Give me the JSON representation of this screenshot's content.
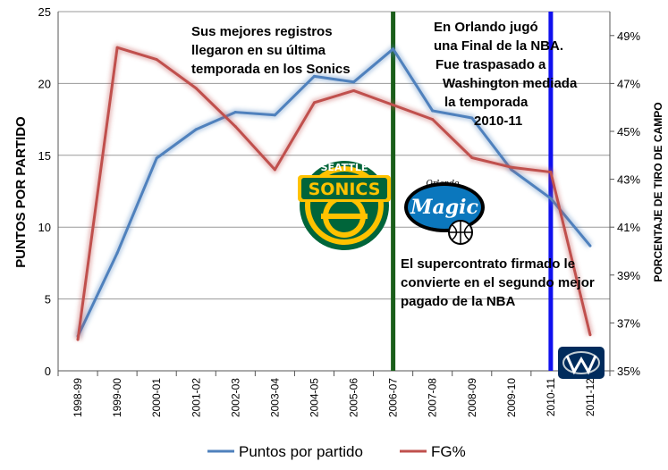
{
  "chart_data": {
    "type": "line",
    "categories": [
      "1998-99",
      "1999-00",
      "2000-01",
      "2001-02",
      "2002-03",
      "2003-04",
      "2004-05",
      "2005-06",
      "2006-07",
      "2007-08",
      "2008-09",
      "2009-10",
      "2010-11",
      "2011-12"
    ],
    "series": [
      {
        "name": "Puntos por partido",
        "axis": "left",
        "color": "#4f81bd",
        "values": [
          2.4,
          8.2,
          14.8,
          16.8,
          18.0,
          17.8,
          20.5,
          20.1,
          22.4,
          18.1,
          17.6,
          14.0,
          12.0,
          8.7
        ]
      },
      {
        "name": "FG%",
        "axis": "right",
        "color": "#c0504d",
        "values": [
          36.3,
          48.5,
          48.0,
          46.8,
          45.2,
          43.4,
          46.2,
          46.7,
          46.1,
          45.5,
          43.9,
          43.5,
          43.3,
          36.5
        ]
      }
    ],
    "ylabel": "PUNTOS POR PARTIDO",
    "y2label": "PORCENTAJE DE TIRO DE CAMPO",
    "ylim": [
      0,
      25
    ],
    "yticks": [
      "0",
      "5",
      "10",
      "15",
      "20",
      "25"
    ],
    "y2lim": [
      35,
      50
    ],
    "y2ticks": [
      "35%",
      "37%",
      "39%",
      "41%",
      "43%",
      "45%",
      "47%",
      "49%"
    ],
    "grid": "horizontal",
    "legend_position": "bottom",
    "vlines": [
      {
        "category": "2006-07",
        "color": "#1a5e1a"
      },
      {
        "category": "2010-11",
        "color": "#1010ee"
      }
    ],
    "annotations": [
      {
        "lines": [
          "Sus mejores registros",
          "llegaron en su última",
          "temporada en los Sonics"
        ]
      },
      {
        "lines": [
          "En Orlando jugó",
          "una Final de la NBA.",
          "Fue traspasado a",
          "Washington mediada",
          "la temporada",
          "2010-11"
        ]
      },
      {
        "lines": [
          "El supercontrato firmado le",
          "convierte en el segundo mejor",
          "pagado de la NBA"
        ]
      }
    ],
    "logos": [
      {
        "team": "Seattle SuperSonics",
        "text": [
          "SEATTLE",
          "SONICS"
        ],
        "colors": [
          "#00653a",
          "#ffc200"
        ]
      },
      {
        "team": "Orlando Magic",
        "text": [
          "Orlando",
          "Magic"
        ],
        "colors": [
          "#0b77bd",
          "#000000"
        ]
      },
      {
        "team": "Washington Wizards",
        "text": [],
        "colors": [
          "#002b5c",
          "#c4ced4"
        ]
      }
    ]
  }
}
